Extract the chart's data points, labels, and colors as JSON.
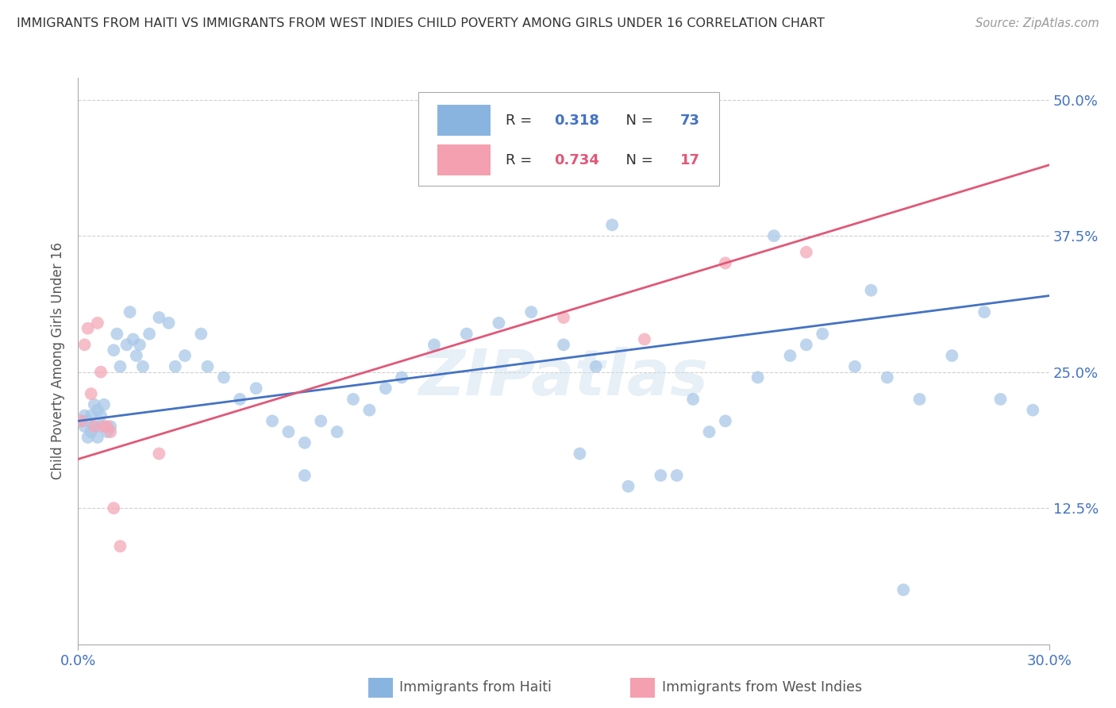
{
  "title": "IMMIGRANTS FROM HAITI VS IMMIGRANTS FROM WEST INDIES CHILD POVERTY AMONG GIRLS UNDER 16 CORRELATION CHART",
  "source": "Source: ZipAtlas.com",
  "ylabel": "Child Poverty Among Girls Under 16",
  "r_haiti": 0.318,
  "n_haiti": 73,
  "r_west_indies": 0.734,
  "n_west_indies": 17,
  "haiti_color": "#a8c8e8",
  "west_indies_color": "#f4a8b8",
  "haiti_line_color": "#4472c4",
  "west_indies_line_color": "#e05878",
  "legend_haiti_color": "#89b4e0",
  "legend_wi_color": "#f4a0b0",
  "background_color": "#ffffff",
  "grid_color": "#d0d0d0",
  "xlim": [
    0.0,
    0.3
  ],
  "ylim": [
    0.0,
    0.52
  ],
  "x_ticks": [
    0.0,
    0.3
  ],
  "y_ticks": [
    0.125,
    0.25,
    0.375,
    0.5
  ],
  "watermark": "ZIPatlas",
  "haiti_line_y0": 0.205,
  "haiti_line_y1": 0.32,
  "wi_line_y0": 0.17,
  "wi_line_y1": 0.44,
  "haiti_x": [
    0.001,
    0.002,
    0.002,
    0.003,
    0.003,
    0.004,
    0.004,
    0.005,
    0.005,
    0.006,
    0.006,
    0.007,
    0.007,
    0.008,
    0.009,
    0.01,
    0.011,
    0.012,
    0.013,
    0.015,
    0.016,
    0.017,
    0.018,
    0.019,
    0.02,
    0.022,
    0.025,
    0.028,
    0.03,
    0.033,
    0.038,
    0.04,
    0.045,
    0.05,
    0.055,
    0.06,
    0.065,
    0.07,
    0.075,
    0.08,
    0.085,
    0.09,
    0.095,
    0.1,
    0.11,
    0.12,
    0.13,
    0.14,
    0.15,
    0.16,
    0.17,
    0.18,
    0.19,
    0.2,
    0.21,
    0.22,
    0.23,
    0.24,
    0.25,
    0.26,
    0.27,
    0.28,
    0.165,
    0.255,
    0.245,
    0.185,
    0.155,
    0.225,
    0.195,
    0.215,
    0.07,
    0.285,
    0.295
  ],
  "haiti_y": [
    0.205,
    0.2,
    0.21,
    0.19,
    0.205,
    0.21,
    0.195,
    0.2,
    0.22,
    0.19,
    0.215,
    0.2,
    0.21,
    0.22,
    0.195,
    0.2,
    0.27,
    0.285,
    0.255,
    0.275,
    0.305,
    0.28,
    0.265,
    0.275,
    0.255,
    0.285,
    0.3,
    0.295,
    0.255,
    0.265,
    0.285,
    0.255,
    0.245,
    0.225,
    0.235,
    0.205,
    0.195,
    0.185,
    0.205,
    0.195,
    0.225,
    0.215,
    0.235,
    0.245,
    0.275,
    0.285,
    0.295,
    0.305,
    0.275,
    0.255,
    0.145,
    0.155,
    0.225,
    0.205,
    0.245,
    0.265,
    0.285,
    0.255,
    0.245,
    0.225,
    0.265,
    0.305,
    0.385,
    0.05,
    0.325,
    0.155,
    0.175,
    0.275,
    0.195,
    0.375,
    0.155,
    0.225,
    0.215
  ],
  "wi_x": [
    0.001,
    0.002,
    0.003,
    0.004,
    0.005,
    0.006,
    0.007,
    0.008,
    0.009,
    0.01,
    0.011,
    0.013,
    0.15,
    0.175,
    0.2,
    0.225,
    0.025
  ],
  "wi_y": [
    0.205,
    0.275,
    0.29,
    0.23,
    0.2,
    0.295,
    0.25,
    0.2,
    0.2,
    0.195,
    0.125,
    0.09,
    0.3,
    0.28,
    0.35,
    0.36,
    0.175
  ]
}
